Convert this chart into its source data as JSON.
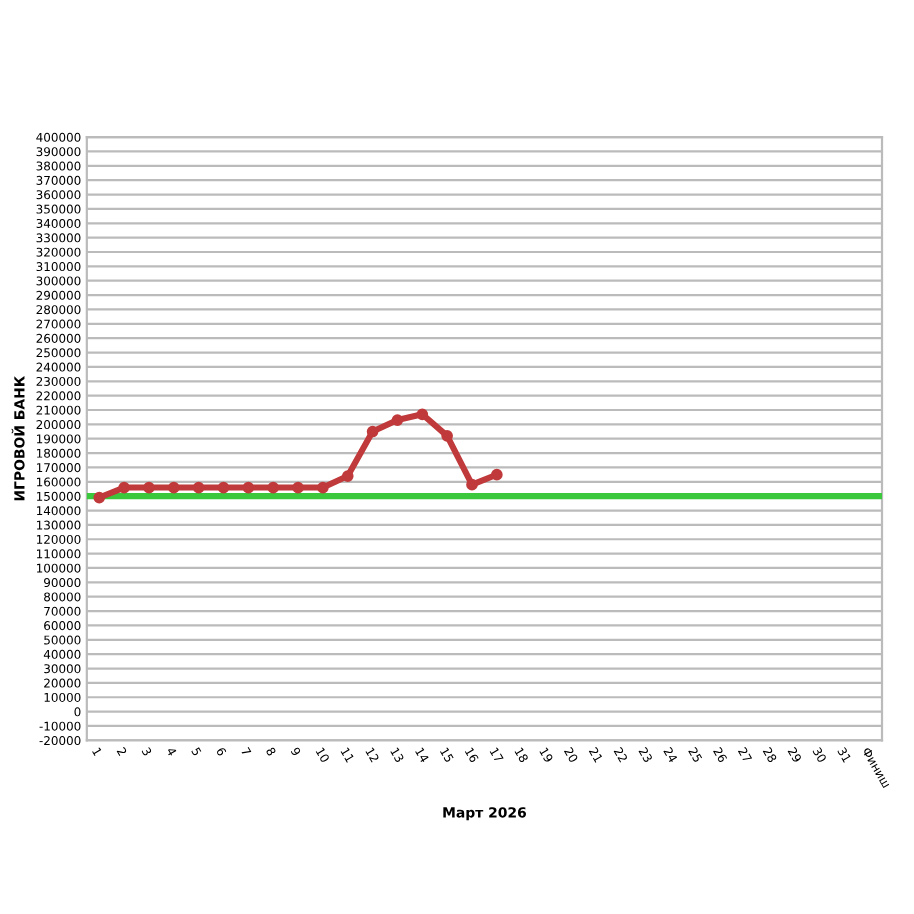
{
  "chart_data": {
    "type": "line",
    "xlabel": "Март 2026",
    "ylabel": "ИГРОВОЙ БАНК",
    "categories": [
      "1",
      "2",
      "3",
      "4",
      "5",
      "6",
      "7",
      "8",
      "9",
      "10",
      "11",
      "12",
      "13",
      "14",
      "15",
      "16",
      "17",
      "18",
      "19",
      "20",
      "21",
      "22",
      "23",
      "24",
      "25",
      "26",
      "27",
      "28",
      "29",
      "30",
      "31",
      "Финиш"
    ],
    "series": [
      {
        "color": "#c0393b",
        "values": [
          149000,
          156000,
          156000,
          156000,
          156000,
          156000,
          156000,
          156000,
          156000,
          156000,
          164000,
          195000,
          203000,
          207000,
          192000,
          158000,
          165000,
          null,
          null,
          null,
          null,
          null,
          null,
          null,
          null,
          null,
          null,
          null,
          null,
          null,
          null,
          null
        ]
      }
    ],
    "ylim": [
      -20000,
      400000
    ],
    "yticks": [
      -20000,
      -10000,
      0,
      10000,
      20000,
      30000,
      40000,
      50000,
      60000,
      70000,
      80000,
      90000,
      100000,
      110000,
      120000,
      130000,
      140000,
      150000,
      160000,
      170000,
      180000,
      190000,
      200000,
      210000,
      220000,
      230000,
      240000,
      250000,
      260000,
      270000,
      280000,
      290000,
      300000,
      310000,
      320000,
      330000,
      340000,
      350000,
      360000,
      370000,
      380000,
      390000,
      400000
    ],
    "ref_lines": [
      {
        "axis": "y",
        "value": 150000,
        "color": "#3cc83c"
      }
    ],
    "grid": "y",
    "marker": "circle",
    "line_style": "solid",
    "legend": false
  }
}
